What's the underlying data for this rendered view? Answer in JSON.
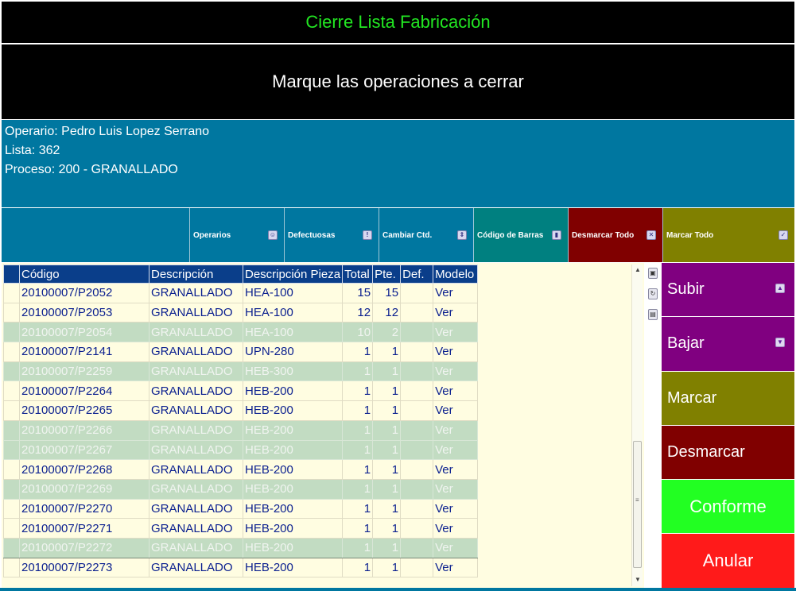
{
  "window": {
    "title": "Cierre Lista Fabricación",
    "instruction": "Marque las operaciones a cerrar"
  },
  "info": {
    "operario": "Operario: Pedro Luis Lopez Serrano",
    "lista": "Lista: 362",
    "proceso": "Proceso: 200 - GRANALLADO"
  },
  "toolbar": {
    "operarios": "Operarios",
    "defectuosas": "Defectuosas",
    "cambiar_ctd": "Cambiar Ctd.",
    "codigo_barras": "Código de Barras",
    "desmarcar_todo": "Desmarcar Todo",
    "marcar_todo": "Marcar Todo",
    "colors": {
      "operarios": "#0077a0",
      "defectuosas": "#0077a0",
      "cambiar_ctd": "#0077a0",
      "codigo_barras": "#008080",
      "desmarcar_todo": "#800000",
      "marcar_todo": "#808000"
    }
  },
  "grid": {
    "columns": [
      "Código",
      "Descripción",
      "Descripción Pieza",
      "Total",
      "Pte.",
      "Def.",
      "Modelo"
    ],
    "rows": [
      {
        "codigo": "20100007/P2052",
        "descripcion": "GRANALLADO",
        "pieza": "HEA-100",
        "total": "15",
        "pte": "15",
        "def": "",
        "modelo": "Ver",
        "closed": false
      },
      {
        "codigo": "20100007/P2053",
        "descripcion": "GRANALLADO",
        "pieza": "HEA-100",
        "total": "12",
        "pte": "12",
        "def": "",
        "modelo": "Ver",
        "closed": false
      },
      {
        "codigo": "20100007/P2054",
        "descripcion": "GRANALLADO",
        "pieza": "HEA-100",
        "total": "10",
        "pte": "2",
        "def": "",
        "modelo": "Ver",
        "closed": true
      },
      {
        "codigo": "20100007/P2141",
        "descripcion": "GRANALLADO",
        "pieza": "UPN-280",
        "total": "1",
        "pte": "1",
        "def": "",
        "modelo": "Ver",
        "closed": false
      },
      {
        "codigo": "20100007/P2259",
        "descripcion": "GRANALLADO",
        "pieza": "HEB-300",
        "total": "1",
        "pte": "1",
        "def": "",
        "modelo": "Ver",
        "closed": true
      },
      {
        "codigo": "20100007/P2264",
        "descripcion": "GRANALLADO",
        "pieza": "HEB-200",
        "total": "1",
        "pte": "1",
        "def": "",
        "modelo": "Ver",
        "closed": false
      },
      {
        "codigo": "20100007/P2265",
        "descripcion": "GRANALLADO",
        "pieza": "HEB-200",
        "total": "1",
        "pte": "1",
        "def": "",
        "modelo": "Ver",
        "closed": false
      },
      {
        "codigo": "20100007/P2266",
        "descripcion": "GRANALLADO",
        "pieza": "HEB-200",
        "total": "1",
        "pte": "1",
        "def": "",
        "modelo": "Ver",
        "closed": true
      },
      {
        "codigo": "20100007/P2267",
        "descripcion": "GRANALLADO",
        "pieza": "HEB-200",
        "total": "1",
        "pte": "1",
        "def": "",
        "modelo": "Ver",
        "closed": true
      },
      {
        "codigo": "20100007/P2268",
        "descripcion": "GRANALLADO",
        "pieza": "HEB-200",
        "total": "1",
        "pte": "1",
        "def": "",
        "modelo": "Ver",
        "closed": false
      },
      {
        "codigo": "20100007/P2269",
        "descripcion": "GRANALLADO",
        "pieza": "HEB-200",
        "total": "1",
        "pte": "1",
        "def": "",
        "modelo": "Ver",
        "closed": true
      },
      {
        "codigo": "20100007/P2270",
        "descripcion": "GRANALLADO",
        "pieza": "HEB-200",
        "total": "1",
        "pte": "1",
        "def": "",
        "modelo": "Ver",
        "closed": false
      },
      {
        "codigo": "20100007/P2271",
        "descripcion": "GRANALLADO",
        "pieza": "HEB-200",
        "total": "1",
        "pte": "1",
        "def": "",
        "modelo": "Ver",
        "closed": false
      },
      {
        "codigo": "20100007/P2272",
        "descripcion": "GRANALLADO",
        "pieza": "HEB-200",
        "total": "1",
        "pte": "1",
        "def": "",
        "modelo": "Ver",
        "closed": true,
        "selected": true
      },
      {
        "codigo": "20100007/P2273",
        "descripcion": "GRANALLADO",
        "pieza": "HEB-200",
        "total": "1",
        "pte": "1",
        "def": "",
        "modelo": "Ver",
        "closed": false
      }
    ]
  },
  "actions": {
    "subir": "Subir",
    "bajar": "Bajar",
    "marcar": "Marcar",
    "desmarcar": "Desmarcar",
    "conforme": "Conforme",
    "anular": "Anular",
    "colors": {
      "subir": "#800080",
      "bajar": "#800080",
      "marcar": "#808000",
      "desmarcar": "#800000",
      "conforme": "#22ff22",
      "anular": "#ff1a1a"
    }
  }
}
